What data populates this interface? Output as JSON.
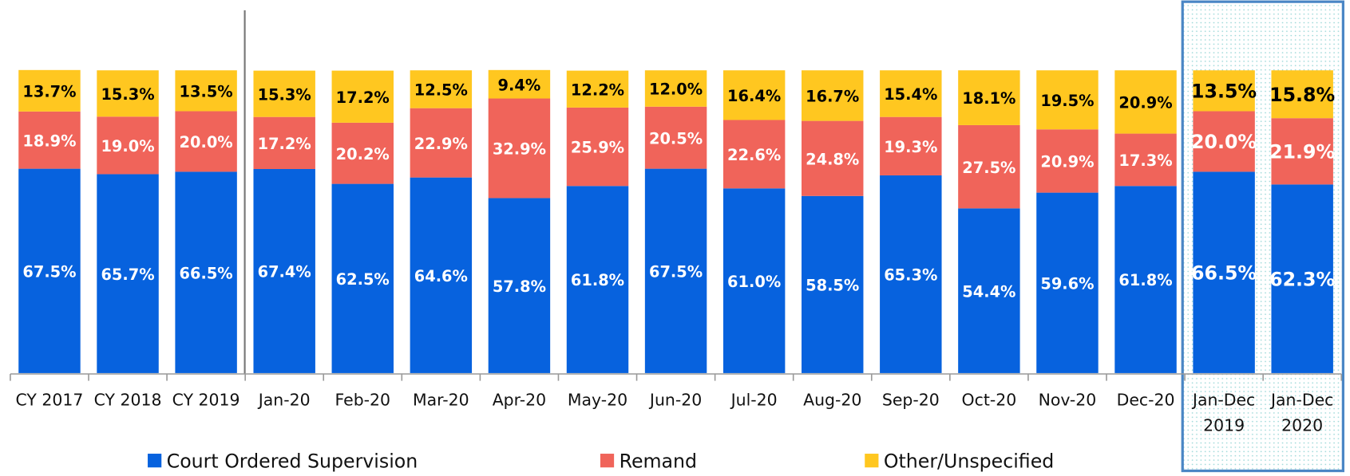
{
  "chart_data": {
    "type": "stacked_bar_100",
    "categories": [
      "CY 2017",
      "CY 2018",
      "CY 2019",
      "Jan-20",
      "Feb-20",
      "Mar-20",
      "Apr-20",
      "May-20",
      "Jun-20",
      "Jul-20",
      "Aug-20",
      "Sep-20",
      "Oct-20",
      "Nov-20",
      "Dec-20",
      [
        "Jan-Dec",
        "2019"
      ],
      [
        "Jan-Dec",
        "2020"
      ]
    ],
    "ylim": [
      0,
      100
    ],
    "legend": "bottom",
    "series": [
      {
        "name": "Court Ordered Supervision",
        "color": "#0762de",
        "values": [
          67.5,
          65.7,
          66.5,
          67.4,
          62.5,
          64.6,
          57.8,
          61.8,
          67.5,
          61.0,
          58.5,
          65.3,
          54.4,
          59.6,
          61.8,
          66.5,
          62.3
        ],
        "value_labels": [
          "67.5%",
          "65.7%",
          "66.5%",
          "67.4%",
          "62.5%",
          "64.6%",
          "57.8%",
          "61.8%",
          "67.5%",
          "61.0%",
          "58.5%",
          "65.3%",
          "54.4%",
          "59.6%",
          "61.8%",
          "66.5%",
          "62.3%"
        ]
      },
      {
        "name": "Remand",
        "color": "#f0645a",
        "values": [
          18.9,
          19.0,
          20.0,
          17.2,
          20.2,
          22.9,
          32.9,
          25.9,
          20.5,
          22.6,
          24.8,
          19.3,
          27.5,
          20.9,
          17.3,
          20.0,
          21.9
        ],
        "value_labels": [
          "18.9%",
          "19.0%",
          "20.0%",
          "17.2%",
          "20.2%",
          "22.9%",
          "32.9%",
          "25.9%",
          "20.5%",
          "22.6%",
          "24.8%",
          "19.3%",
          "27.5%",
          "20.9%",
          "17.3%",
          "20.0%",
          "21.9%"
        ]
      },
      {
        "name": "Other/Unspecified",
        "color": "#ffc720",
        "values": [
          13.7,
          15.3,
          13.5,
          15.3,
          17.2,
          12.5,
          9.4,
          12.2,
          12.0,
          16.4,
          16.7,
          15.4,
          18.1,
          19.5,
          20.9,
          13.5,
          15.8
        ],
        "value_labels": [
          "13.7%",
          "15.3%",
          "13.5%",
          "15.3%",
          "17.2%",
          "12.5%",
          "9.4%",
          "12.2%",
          "12.0%",
          "16.4%",
          "16.7%",
          "15.4%",
          "18.1%",
          "19.5%",
          "20.9%",
          "13.5%",
          "15.8%"
        ]
      }
    ]
  }
}
